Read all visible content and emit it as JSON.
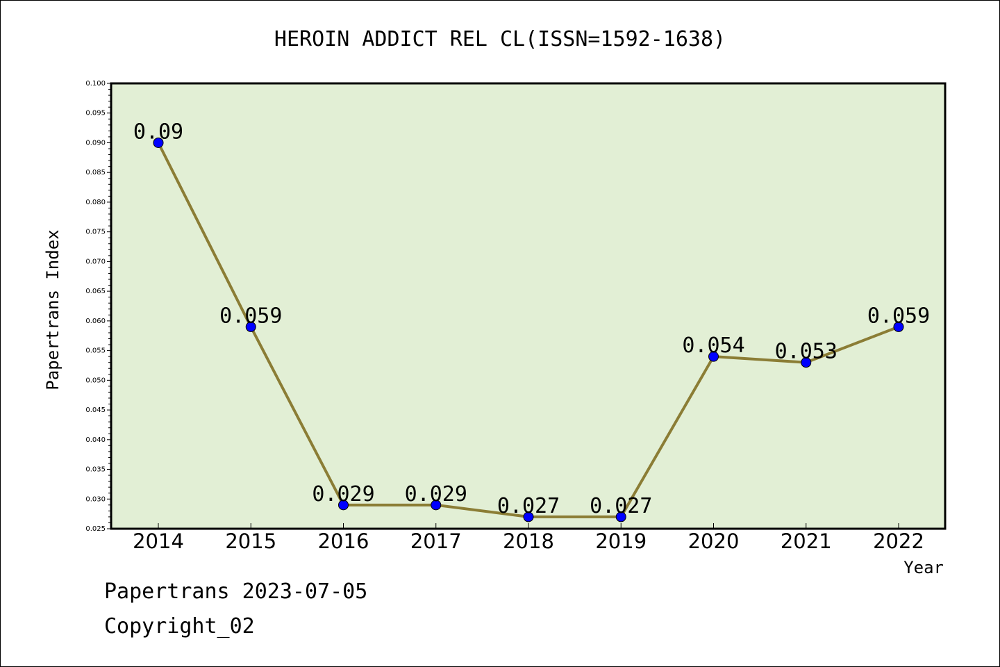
{
  "chart_data": {
    "type": "line",
    "title": "HEROIN ADDICT REL CL(ISSN=1592-1638)",
    "xlabel": "Year",
    "ylabel": "Papertrans Index",
    "categories": [
      "2014",
      "2015",
      "2016",
      "2017",
      "2018",
      "2019",
      "2020",
      "2021",
      "2022"
    ],
    "series": [
      {
        "values": [
          0.09,
          0.059,
          0.029,
          0.029,
          0.027,
          0.027,
          0.054,
          0.053,
          0.059
        ],
        "labels": [
          "0.09",
          "0.059",
          "0.029",
          "0.029",
          "0.027",
          "0.027",
          "0.054",
          "0.053",
          "0.059"
        ]
      }
    ],
    "ylim": [
      0.025,
      0.1
    ],
    "yticks": [
      "0.025",
      "0.030",
      "0.035",
      "0.040",
      "0.045",
      "0.050",
      "0.055",
      "0.060",
      "0.065",
      "0.070",
      "0.075",
      "0.080",
      "0.085",
      "0.090",
      "0.095",
      "0.100"
    ],
    "grid": false,
    "colors": {
      "plot_background": "#e2efd5",
      "line": "#8b7d35",
      "marker": "#0000ff"
    }
  },
  "footer": {
    "line1": "Papertrans 2023-07-05",
    "line2": "Copyright_02"
  }
}
